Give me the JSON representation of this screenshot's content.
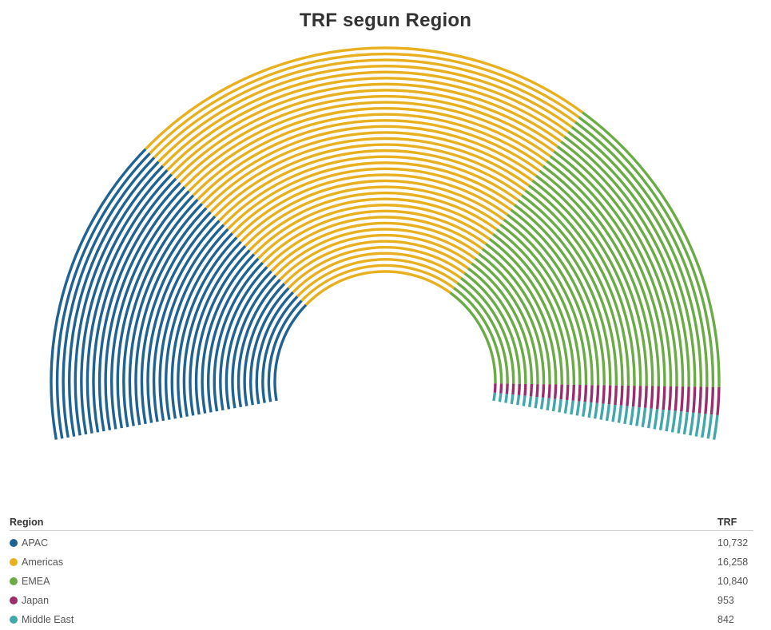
{
  "chart_data": {
    "type": "pie",
    "subtype": "semicircle-arc-lines",
    "title": "TRF segun Region",
    "legend_header": {
      "category_label": "Region",
      "value_label": "TRF"
    },
    "legend_placement": "bottom",
    "categories": [
      "APAC",
      "Americas",
      "EMEA",
      "Japan",
      "Middle East"
    ],
    "values": [
      10732,
      16258,
      10840,
      953,
      842
    ],
    "value_labels": [
      "10,732",
      "16,258",
      "10,840",
      "953",
      "842"
    ],
    "colors": [
      "#1f6394",
      "#e8b01e",
      "#6aab45",
      "#9a2e6a",
      "#40a8a8"
    ]
  }
}
